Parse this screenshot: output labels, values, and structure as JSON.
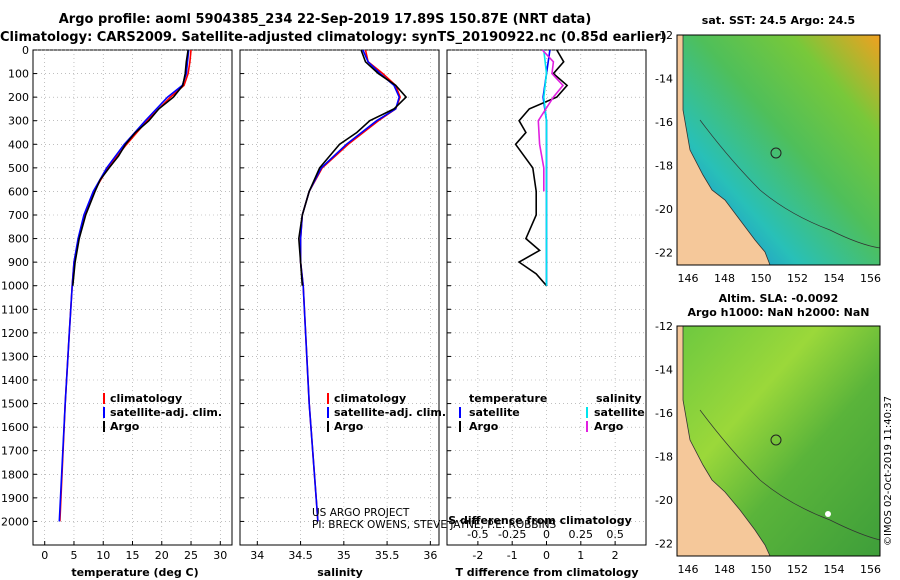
{
  "header": {
    "line1": "Argo profile: aoml 5904385_234 22-Sep-2019 17.89S 150.87E (NRT data)",
    "line2": "Climatology: CARS2009. Satellite-adjusted climatology: synTS_20190922.nc (0.85d earlier)"
  },
  "credit": {
    "line1": "US ARGO PROJECT",
    "line2": "PI: BRECK OWENS, STEVE JAYNE, P.E. ROBBINS"
  },
  "maps": {
    "sst_title": "sat. SST: 24.5 Argo: 24.5",
    "sla_title1": "Altim. SLA: -0.0092",
    "sla_title2": "Argo h1000: NaN h2000: NaN",
    "stamp": "©IMOS 02-Oct-2019 11:40:37",
    "lat_ticks": [
      "-12",
      "-14",
      "-16",
      "-18",
      "-20",
      "-22"
    ],
    "lon_ticks": [
      "146",
      "148",
      "150",
      "152",
      "154",
      "156"
    ]
  },
  "colors": {
    "climatology": "#ff0000",
    "satellite": "#0000ff",
    "argo": "#000000",
    "salinity_satellite": "#00e5ee",
    "salinity_argo": "#e020e0",
    "land": "#f5c89a"
  },
  "chart_data": [
    {
      "type": "line",
      "title": "",
      "xlabel": "temperature (deg C)",
      "ylabel": "",
      "xlim": [
        -2,
        32
      ],
      "ylim": [
        2100,
        0
      ],
      "xticks": [
        "0",
        "5",
        "10",
        "15",
        "20",
        "25",
        "30"
      ],
      "yticks": [
        "0",
        "100",
        "200",
        "300",
        "400",
        "500",
        "600",
        "700",
        "800",
        "900",
        "1000",
        "1100",
        "1200",
        "1300",
        "1400",
        "1500",
        "1600",
        "1700",
        "1800",
        "1900",
        "2000"
      ],
      "legend": [
        "climatology",
        "satellite-adj. clim.",
        "Argo"
      ],
      "series": [
        {
          "name": "climatology",
          "depth": [
            0,
            50,
            100,
            150,
            200,
            300,
            400,
            500,
            600,
            700,
            800,
            900,
            1000,
            1200,
            1500,
            2000
          ],
          "values": [
            25.0,
            24.8,
            24.5,
            23.8,
            21.5,
            17.5,
            14.0,
            10.8,
            8.4,
            6.8,
            5.8,
            5.0,
            4.7,
            4.2,
            3.5,
            2.6
          ]
        },
        {
          "name": "satellite-adj. clim.",
          "depth": [
            0,
            50,
            100,
            150,
            200,
            300,
            400,
            500,
            600,
            700,
            800,
            900,
            1000,
            1200,
            1500,
            2000
          ],
          "values": [
            24.6,
            24.4,
            24.2,
            23.5,
            21.0,
            17.2,
            13.6,
            10.6,
            8.3,
            6.7,
            5.7,
            5.0,
            4.7,
            4.2,
            3.5,
            2.5
          ]
        },
        {
          "name": "Argo",
          "depth": [
            0,
            50,
            100,
            150,
            200,
            250,
            300,
            350,
            400,
            450,
            500,
            550,
            600,
            700,
            800,
            900,
            1000
          ],
          "values": [
            24.5,
            24.2,
            24.0,
            23.6,
            22.0,
            19.5,
            17.8,
            15.5,
            13.8,
            12.6,
            11.0,
            9.5,
            8.6,
            7.0,
            5.9,
            5.2,
            4.8
          ]
        }
      ]
    },
    {
      "type": "line",
      "title": "",
      "xlabel": "salinity",
      "ylabel": "",
      "xlim": [
        33.8,
        36.1
      ],
      "ylim": [
        2100,
        0
      ],
      "xticks": [
        "34",
        "34.5",
        "35",
        "35.5",
        "36"
      ],
      "legend": [
        "climatology",
        "satellite-adj. clim.",
        "Argo"
      ],
      "series": [
        {
          "name": "climatology",
          "depth": [
            0,
            50,
            100,
            150,
            200,
            250,
            300,
            400,
            500,
            600,
            700,
            800,
            900,
            1000,
            1500,
            2000
          ],
          "values": [
            35.25,
            35.28,
            35.45,
            35.6,
            35.65,
            35.6,
            35.4,
            35.05,
            34.75,
            34.6,
            34.52,
            34.5,
            34.5,
            34.53,
            34.6,
            34.7
          ]
        },
        {
          "name": "satellite-adj. clim.",
          "depth": [
            0,
            50,
            100,
            150,
            200,
            250,
            300,
            400,
            500,
            600,
            700,
            800,
            900,
            1000,
            1500,
            2000
          ],
          "values": [
            35.22,
            35.28,
            35.42,
            35.58,
            35.64,
            35.6,
            35.38,
            35.03,
            34.74,
            34.6,
            34.52,
            34.5,
            34.5,
            34.53,
            34.6,
            34.7
          ]
        },
        {
          "name": "Argo",
          "depth": [
            0,
            50,
            100,
            150,
            200,
            250,
            300,
            350,
            400,
            500,
            600,
            700,
            800,
            900,
            1000
          ],
          "values": [
            35.2,
            35.25,
            35.4,
            35.6,
            35.72,
            35.58,
            35.3,
            35.15,
            34.95,
            34.72,
            34.6,
            34.52,
            34.48,
            34.5,
            34.52
          ]
        }
      ]
    },
    {
      "type": "line",
      "title": "",
      "xlabel": "T difference from climatology",
      "xlabel2": "S difference from climatology",
      "xlim": [
        -2.9,
        2.9
      ],
      "ylim": [
        2100,
        0
      ],
      "xticks": [
        "-2",
        "-1",
        "0",
        "1",
        "2"
      ],
      "xticks2": [
        "-0.5",
        "-0.25",
        "0",
        "0.25",
        "0.5"
      ],
      "legend_left_title": "temperature",
      "legend_right_title": "salinity",
      "legend": [
        "satellite",
        "Argo",
        "satellite",
        "Argo"
      ],
      "series": [
        {
          "name": "temperature satellite",
          "depth": [
            0,
            100,
            200,
            300,
            500,
            700,
            1000
          ],
          "values": [
            0.1,
            0.0,
            -0.1,
            0.0,
            0.0,
            0.0,
            0.0
          ]
        },
        {
          "name": "temperature Argo",
          "depth": [
            0,
            50,
            100,
            150,
            200,
            250,
            300,
            350,
            400,
            500,
            600,
            700,
            800,
            850,
            900,
            950,
            1000
          ],
          "values": [
            0.3,
            0.5,
            0.2,
            0.6,
            0.3,
            -0.5,
            -0.8,
            -0.6,
            -0.9,
            -0.4,
            -0.3,
            -0.3,
            -0.6,
            -0.2,
            -0.8,
            -0.3,
            0.0
          ]
        },
        {
          "name": "salinity satellite",
          "depth": [
            0,
            100,
            200,
            300,
            400,
            600,
            800,
            1000
          ],
          "values": [
            -0.02,
            0.0,
            -0.02,
            0.0,
            0.0,
            0.0,
            0.0,
            0.0
          ]
        },
        {
          "name": "salinity Argo",
          "depth": [
            0,
            50,
            100,
            150,
            200,
            300,
            400,
            500,
            600
          ],
          "values": [
            -0.03,
            0.05,
            0.04,
            0.12,
            0.05,
            -0.06,
            -0.05,
            -0.02,
            -0.02
          ]
        }
      ]
    }
  ]
}
